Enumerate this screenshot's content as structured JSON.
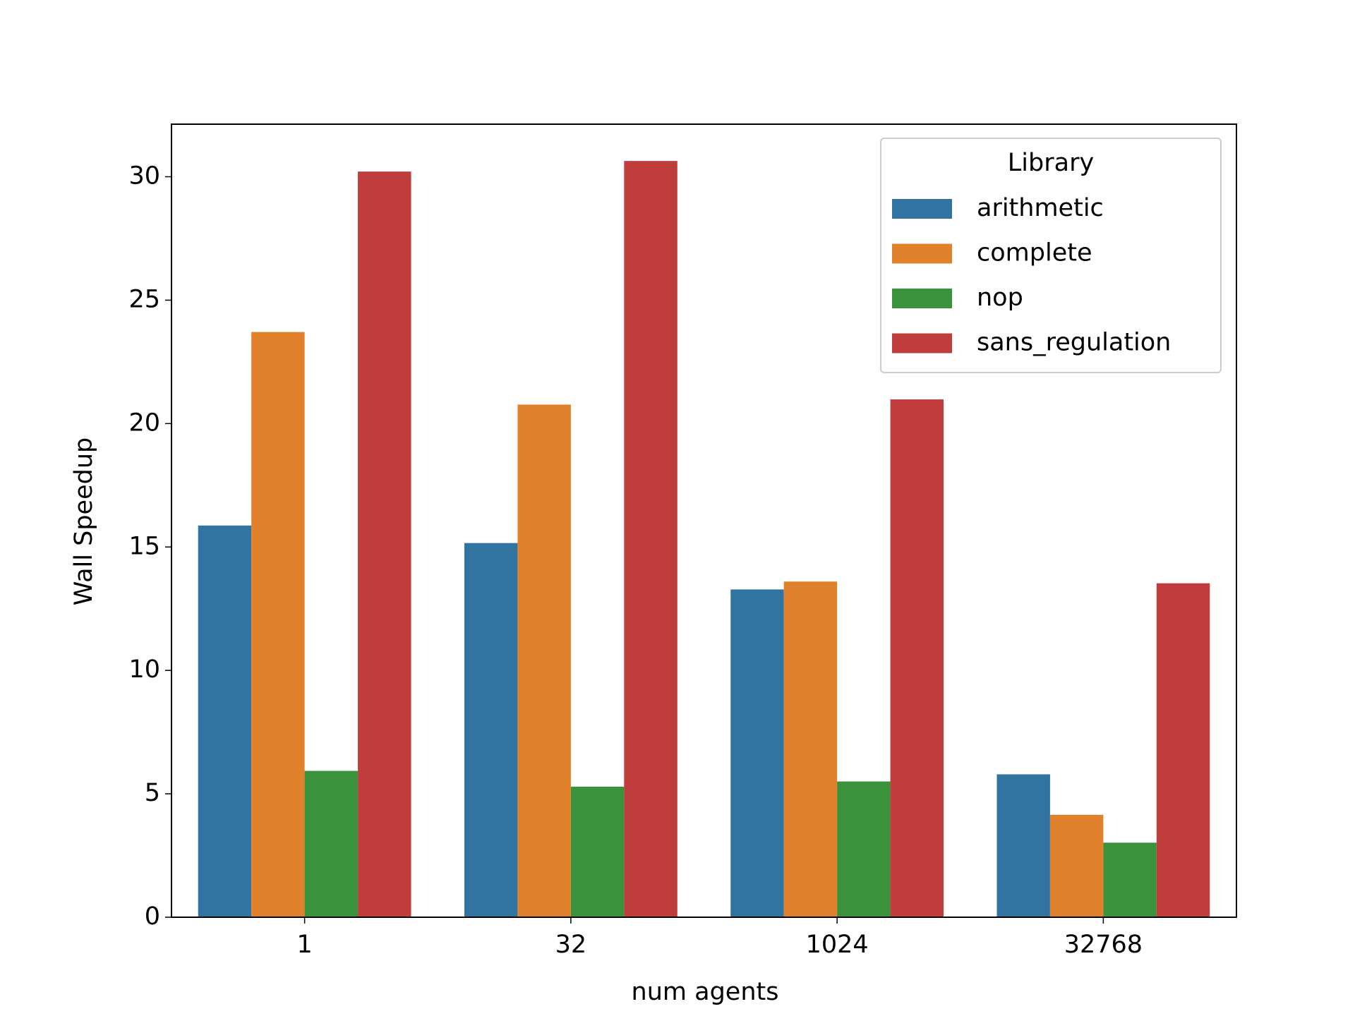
{
  "chart_data": {
    "type": "bar",
    "x_label": "num agents",
    "y_label": "Wall Speedup",
    "categories": [
      "1",
      "32",
      "1024",
      "32768"
    ],
    "series": [
      {
        "name": "arithmetic",
        "color": "#3274a1",
        "values": [
          15.87,
          15.16,
          13.28,
          5.79
        ]
      },
      {
        "name": "complete",
        "color": "#e1812c",
        "values": [
          23.71,
          20.77,
          13.6,
          4.15
        ]
      },
      {
        "name": "nop",
        "color": "#3a923a",
        "values": [
          5.93,
          5.29,
          5.5,
          3.02
        ]
      },
      {
        "name": "sans_regulation",
        "color": "#c03d3e",
        "values": [
          30.21,
          30.64,
          20.98,
          13.53
        ]
      }
    ],
    "ylim": [
      0,
      32.13
    ],
    "yticks": [
      0,
      5,
      10,
      15,
      20,
      25,
      30
    ],
    "grid": false,
    "legend_title": "Library",
    "legend_position": "upper-right"
  }
}
